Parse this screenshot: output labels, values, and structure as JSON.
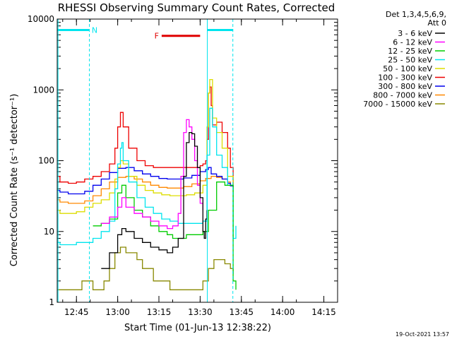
{
  "chart_data": {
    "type": "line",
    "title": "RHESSI Observing Summary Count Rates, Corrected",
    "xlabel": "Start Time (01-Jun-13 12:38:22)",
    "ylabel": "Corrected Count Rate (s⁻¹ detector⁻¹)",
    "footer": "19-Oct-2021 13:57",
    "legend_title": [
      "Det 1,3,4,5,6,9,",
      "Att 0"
    ],
    "y_scale": "log",
    "ylim": [
      1,
      10000
    ],
    "xlim_minutes_after_1238": [
      0,
      102
    ],
    "x_ticks": [
      {
        "label": "12:45",
        "min": 7
      },
      {
        "label": "13:00",
        "min": 22
      },
      {
        "label": "13:15",
        "min": 37
      },
      {
        "label": "13:30",
        "min": 52
      },
      {
        "label": "13:45",
        "min": 67
      },
      {
        "label": "14:00",
        "min": 82
      },
      {
        "label": "14:15",
        "min": 97
      }
    ],
    "y_ticks": [
      {
        "label": "1",
        "v": 1
      },
      {
        "label": "10",
        "v": 10
      },
      {
        "label": "100",
        "v": 100
      },
      {
        "label": "1000",
        "v": 1000
      },
      {
        "label": "10000",
        "v": 10000
      }
    ],
    "annotations": [
      {
        "label": "N",
        "from": 0.2,
        "to": 11.8,
        "level": 7000,
        "color": "#00e5ee"
      },
      {
        "label": "F",
        "from": 38.0,
        "to": 52.0,
        "level": 5800,
        "color": "#e00000"
      },
      {
        "label": "",
        "from": 54.5,
        "to": 64.0,
        "level": 7000,
        "color": "#00e5ee"
      }
    ],
    "vlines": [
      {
        "min": 0.3,
        "style": "solid",
        "color": "#00e5ee"
      },
      {
        "min": 11.7,
        "style": "dashed",
        "color": "#00e5ee"
      },
      {
        "min": 54.6,
        "style": "solid",
        "color": "#00e5ee"
      },
      {
        "min": 63.9,
        "style": "dashed",
        "color": "#00e5ee"
      }
    ],
    "series": [
      {
        "name": "3 - 6 keV",
        "color": "#000000",
        "x": [
          0,
          5,
          9,
          13,
          16,
          19,
          22,
          23.5,
          25,
          28,
          31,
          34,
          37,
          40,
          42,
          44,
          46,
          47,
          48,
          49,
          50,
          51,
          52,
          53,
          53.5,
          54,
          54.5
        ],
        "values": [
          null,
          null,
          null,
          null,
          3,
          5,
          9,
          11,
          10,
          8,
          7,
          6,
          5.5,
          5,
          6,
          8,
          60,
          180,
          250,
          240,
          160,
          80,
          30,
          10,
          8,
          15,
          20
        ]
      },
      {
        "name": "6 - 12 keV",
        "color": "#ff00ff",
        "x": [
          0,
          5,
          9,
          12,
          16,
          19,
          22,
          23.5,
          25,
          28,
          31,
          34,
          37,
          40,
          42,
          44,
          45,
          46,
          47,
          48,
          49,
          50,
          51,
          52,
          53
        ],
        "values": [
          null,
          null,
          null,
          null,
          13,
          16,
          22,
          30,
          22,
          18,
          16,
          14,
          12,
          11,
          12,
          18,
          60,
          250,
          380,
          300,
          200,
          100,
          45,
          25,
          20
        ]
      },
      {
        "name": "12 - 25 keV",
        "color": "#00cc00",
        "x": [
          0,
          5,
          9,
          12,
          13,
          16,
          19,
          22,
          23.5,
          25,
          28,
          31,
          34,
          37,
          40,
          42,
          44,
          47,
          50,
          53,
          55,
          58,
          61,
          64,
          65
        ],
        "values": [
          null,
          null,
          null,
          null,
          12,
          13,
          15,
          35,
          45,
          30,
          20,
          16,
          12,
          10,
          9,
          8,
          8,
          9,
          9,
          10,
          20,
          50,
          45,
          2,
          1.5
        ]
      },
      {
        "name": "25 - 50 keV",
        "color": "#00e5ee",
        "x": [
          0,
          1,
          4,
          7,
          10,
          13,
          16,
          19,
          21,
          22,
          23,
          23.5,
          24,
          26,
          29,
          32,
          35,
          38,
          41,
          44,
          47,
          50,
          53,
          54.5,
          55.5,
          56.5,
          58,
          60,
          62,
          64,
          65
        ],
        "values": [
          7,
          6.5,
          6.5,
          7,
          7,
          8,
          10,
          14,
          40,
          90,
          150,
          180,
          100,
          50,
          30,
          22,
          18,
          15,
          14,
          13,
          13,
          13,
          14,
          120,
          550,
          300,
          120,
          80,
          45,
          8,
          12
        ]
      },
      {
        "name": "50 - 100 keV",
        "color": "#dddd00",
        "x": [
          0,
          1,
          4,
          7,
          10,
          13,
          16,
          19,
          21,
          22,
          23,
          24,
          26,
          29,
          32,
          35,
          38,
          41,
          44,
          47,
          50,
          53,
          54.5,
          55,
          55.5,
          56.5,
          58,
          60,
          62,
          64
        ],
        "values": [
          20,
          18,
          18,
          19,
          22,
          25,
          28,
          35,
          55,
          80,
          100,
          90,
          60,
          45,
          38,
          35,
          33,
          32,
          32,
          33,
          35,
          45,
          300,
          900,
          1400,
          400,
          250,
          150,
          60,
          8
        ]
      },
      {
        "name": "100 - 300 keV",
        "color": "#ee0000",
        "x": [
          0,
          1,
          4,
          7,
          10,
          13,
          16,
          19,
          21,
          22,
          23,
          24,
          26,
          29,
          32,
          35,
          38,
          41,
          44,
          47,
          50,
          52,
          53,
          54,
          54.5,
          55,
          55.5,
          56,
          56.5,
          58,
          60,
          62,
          63,
          64
        ],
        "values": [
          60,
          50,
          48,
          50,
          55,
          60,
          70,
          90,
          150,
          300,
          480,
          300,
          150,
          100,
          85,
          80,
          80,
          80,
          80,
          80,
          80,
          85,
          90,
          100,
          200,
          900,
          1100,
          600,
          320,
          350,
          250,
          150,
          80,
          40
        ]
      },
      {
        "name": "300 - 800 keV",
        "color": "#0000ee",
        "x": [
          0,
          1,
          4,
          7,
          10,
          13,
          16,
          19,
          22,
          25,
          28,
          31,
          34,
          37,
          40,
          43,
          46,
          49,
          52,
          54,
          55,
          56,
          58,
          60,
          62,
          63,
          64
        ],
        "values": [
          38,
          36,
          34,
          34,
          37,
          45,
          55,
          68,
          78,
          80,
          72,
          65,
          60,
          56,
          55,
          55,
          57,
          62,
          70,
          75,
          80,
          65,
          60,
          55,
          48,
          44,
          55
        ]
      },
      {
        "name": "800 - 7000 keV",
        "color": "#ff8800",
        "x": [
          0,
          1,
          4,
          7,
          10,
          13,
          16,
          19,
          22,
          25,
          28,
          31,
          34,
          37,
          40,
          43,
          46,
          49,
          52,
          54,
          56,
          58,
          60,
          62,
          63,
          64
        ],
        "values": [
          28,
          26,
          25,
          25,
          27,
          32,
          40,
          50,
          58,
          60,
          55,
          50,
          45,
          42,
          41,
          41,
          43,
          47,
          52,
          56,
          60,
          58,
          55,
          50,
          45,
          38
        ]
      },
      {
        "name": "7000 - 15000 keV",
        "color": "#888800",
        "x": [
          0,
          3,
          5,
          7,
          9,
          11,
          13,
          15,
          17,
          19,
          21,
          23,
          25,
          27,
          29,
          31,
          33,
          35,
          37,
          39,
          41,
          43,
          45,
          47,
          49,
          51,
          53,
          55,
          57,
          59,
          61,
          63,
          64
        ],
        "values": [
          1.5,
          1.5,
          1.5,
          1.5,
          2,
          2,
          1.5,
          1.5,
          2,
          3,
          5,
          6,
          5,
          5,
          4,
          3,
          3,
          2,
          2,
          2,
          1.5,
          1.5,
          1.5,
          1.5,
          1.5,
          1.5,
          2,
          3,
          4,
          4,
          3.5,
          3,
          2.5
        ]
      }
    ]
  }
}
